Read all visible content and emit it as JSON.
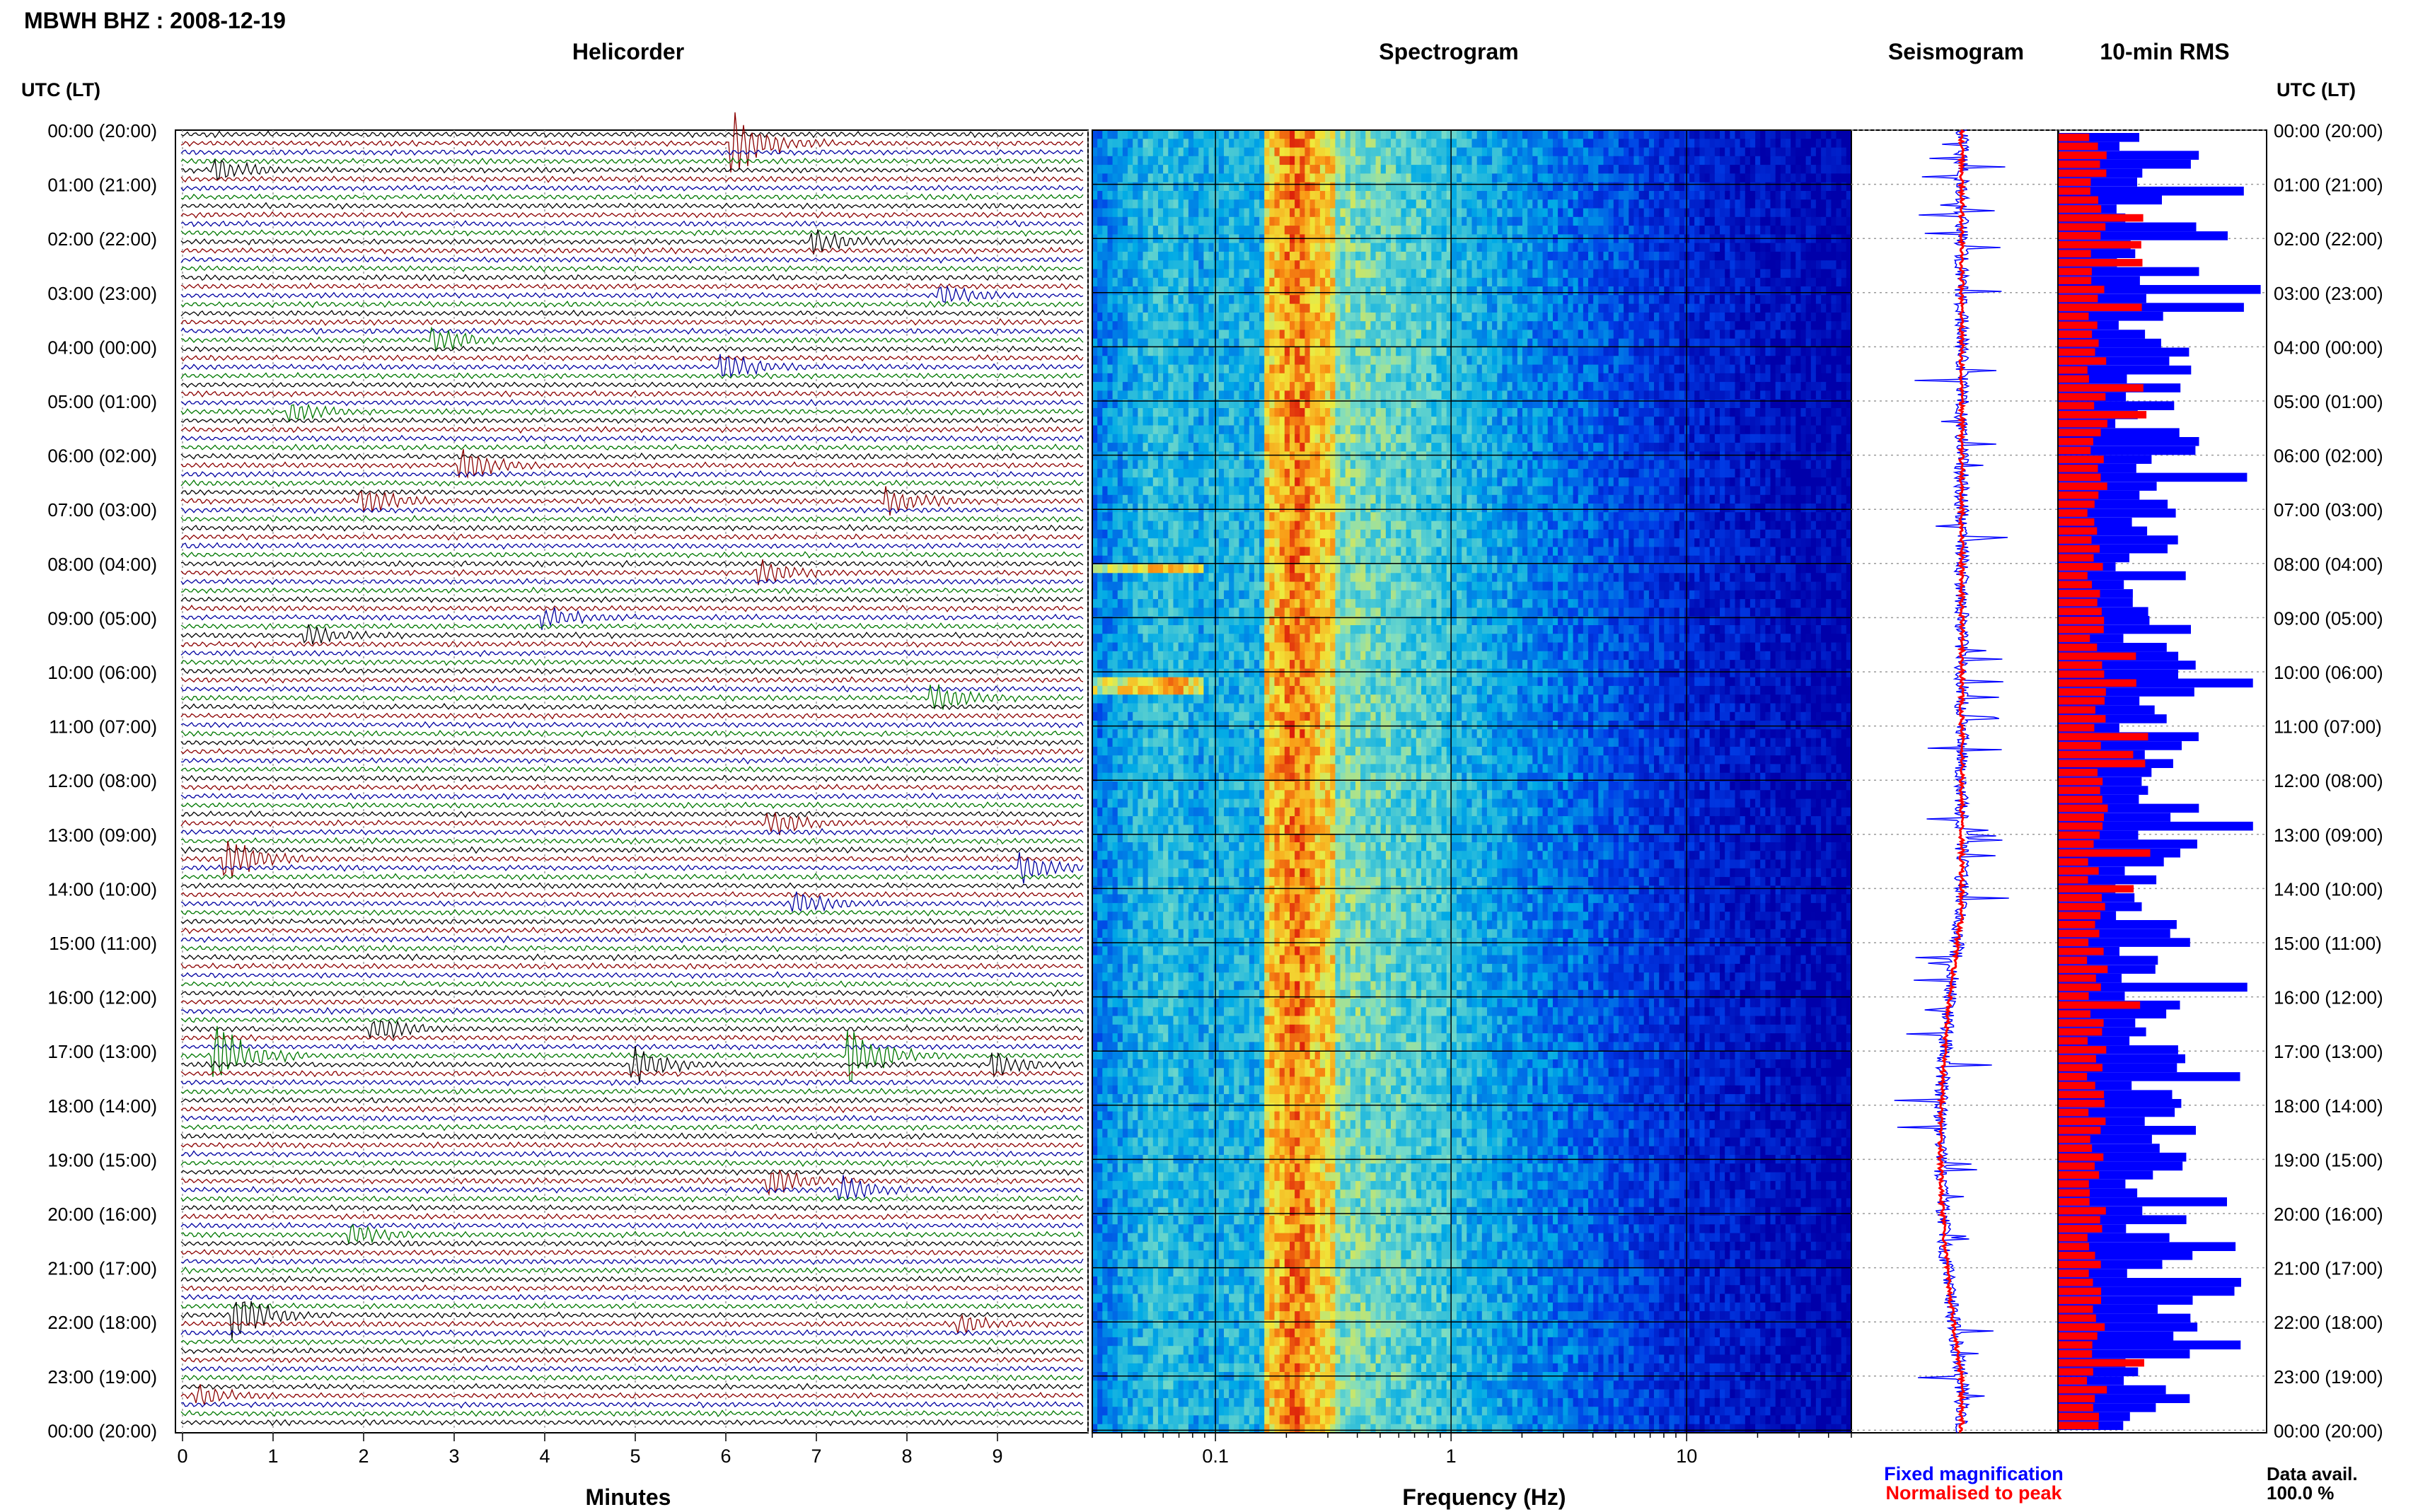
{
  "header": {
    "station_title": "MBWH BHZ : 2008-12-19"
  },
  "panels": {
    "helicorder": "Helicorder",
    "spectrogram": "Spectrogram",
    "seismogram": "Seismogram",
    "rms": "10-min RMS"
  },
  "axis": {
    "time_header_left": "UTC (LT)",
    "time_header_right": "UTC (LT)",
    "minutes_label": "Minutes",
    "frequency_label": "Frequency (Hz)"
  },
  "legend": {
    "fixed": "Fixed magnification",
    "normalised": "Normalised to peak",
    "fixed_color": "#0000ff",
    "normalised_color": "#ff0000"
  },
  "data_avail": {
    "label": "Data avail.",
    "value": "100.0 %"
  },
  "colors": {
    "trace_cycle": [
      "#000000",
      "#8b0000",
      "#0000a0",
      "#007800"
    ],
    "rms_blue": "#0000ff",
    "rms_red": "#ff0000",
    "spectro_bg": "#0000c8"
  },
  "chart_data": [
    {
      "type": "line",
      "title": "Helicorder",
      "xlabel": "Minutes",
      "ylabel": "UTC (LT)",
      "x_ticks": [
        "0",
        "1",
        "2",
        "3",
        "4",
        "5",
        "6",
        "7",
        "8",
        "9"
      ],
      "xlim": [
        0,
        10
      ],
      "time_ticks": [
        "00:00 (20:00)",
        "01:00 (21:00)",
        "02:00 (22:00)",
        "03:00 (23:00)",
        "04:00 (00:00)",
        "05:00 (01:00)",
        "06:00 (02:00)",
        "07:00 (03:00)",
        "08:00 (04:00)",
        "09:00 (05:00)",
        "10:00 (06:00)",
        "11:00 (07:00)",
        "12:00 (08:00)",
        "13:00 (09:00)",
        "14:00 (10:00)",
        "15:00 (11:00)",
        "16:00 (12:00)",
        "17:00 (13:00)",
        "18:00 (14:00)",
        "19:00 (15:00)",
        "20:00 (16:00)",
        "21:00 (17:00)",
        "22:00 (18:00)",
        "23:00 (19:00)",
        "00:00 (20:00)"
      ]
    },
    {
      "type": "heatmap",
      "title": "Spectrogram",
      "xlabel": "Frequency (Hz)",
      "x_scale": "log",
      "x_ticks": [
        "0.1",
        "1",
        "10"
      ],
      "xlim": [
        0.03,
        50
      ]
    },
    {
      "type": "line",
      "title": "Seismogram",
      "series": [
        {
          "name": "Fixed magnification",
          "color": "#0000ff"
        },
        {
          "name": "Normalised to peak",
          "color": "#ff0000"
        }
      ]
    },
    {
      "type": "bar",
      "title": "10-min RMS",
      "series": [
        {
          "name": "Fixed magnification",
          "color": "#0000ff"
        },
        {
          "name": "Normalised to peak",
          "color": "#ff0000"
        }
      ]
    }
  ]
}
